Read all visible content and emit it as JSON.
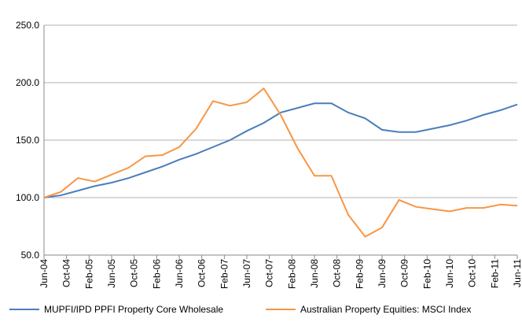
{
  "chart_data": {
    "type": "line",
    "x": [
      0,
      3,
      6,
      9,
      12,
      15,
      18,
      21,
      24,
      27,
      30,
      33,
      36,
      39,
      42,
      45,
      48,
      51,
      54,
      57,
      60,
      63,
      66,
      69,
      72,
      75,
      78,
      81,
      84
    ],
    "xlim": [
      0,
      84
    ],
    "xticks": [
      {
        "value": 0,
        "label": "Jun-04"
      },
      {
        "value": 4,
        "label": "Oct-04"
      },
      {
        "value": 8,
        "label": "Feb-05"
      },
      {
        "value": 12,
        "label": "Jun-05"
      },
      {
        "value": 16,
        "label": "Oct-05"
      },
      {
        "value": 20,
        "label": "Feb-06"
      },
      {
        "value": 24,
        "label": "Jun-06"
      },
      {
        "value": 28,
        "label": "Oct-06"
      },
      {
        "value": 32,
        "label": "Feb-07"
      },
      {
        "value": 36,
        "label": "Jun-07"
      },
      {
        "value": 40,
        "label": "Oct-07"
      },
      {
        "value": 44,
        "label": "Feb-08"
      },
      {
        "value": 48,
        "label": "Jun-08"
      },
      {
        "value": 52,
        "label": "Oct-08"
      },
      {
        "value": 56,
        "label": "Feb-09"
      },
      {
        "value": 60,
        "label": "Jun-09"
      },
      {
        "value": 64,
        "label": "Oct-09"
      },
      {
        "value": 68,
        "label": "Feb-10"
      },
      {
        "value": 72,
        "label": "Jun-10"
      },
      {
        "value": 76,
        "label": "Oct-10"
      },
      {
        "value": 80,
        "label": "Feb-11"
      },
      {
        "value": 84,
        "label": "Jun-11"
      }
    ],
    "ylim": [
      50,
      250
    ],
    "yticks": [
      {
        "value": 50,
        "label": "50.0"
      },
      {
        "value": 100,
        "label": "100.0"
      },
      {
        "value": 150,
        "label": "150.0"
      },
      {
        "value": 200,
        "label": "200.0"
      },
      {
        "value": 250,
        "label": "250.0"
      }
    ],
    "grid": true,
    "legend": "bottom",
    "series": [
      {
        "name": "MUPFI/IPD PPFI Property Core Wholesale",
        "color": "#4a7ebb",
        "values": [
          100,
          102,
          106,
          110,
          113,
          117,
          122,
          127,
          133,
          138,
          144,
          150,
          158,
          165,
          174,
          178,
          182,
          182,
          174,
          169,
          159,
          157,
          157,
          160,
          163,
          167,
          172,
          176,
          181
        ]
      },
      {
        "name": "Australian Property Equities: MSCI Index",
        "color": "#f79646",
        "values": [
          100,
          105,
          117,
          114,
          120,
          126,
          136,
          137,
          144,
          160,
          184,
          180,
          183,
          195,
          172,
          143,
          119,
          119,
          85,
          66,
          74,
          98,
          92,
          90,
          88,
          91,
          91,
          94,
          93
        ]
      }
    ]
  }
}
